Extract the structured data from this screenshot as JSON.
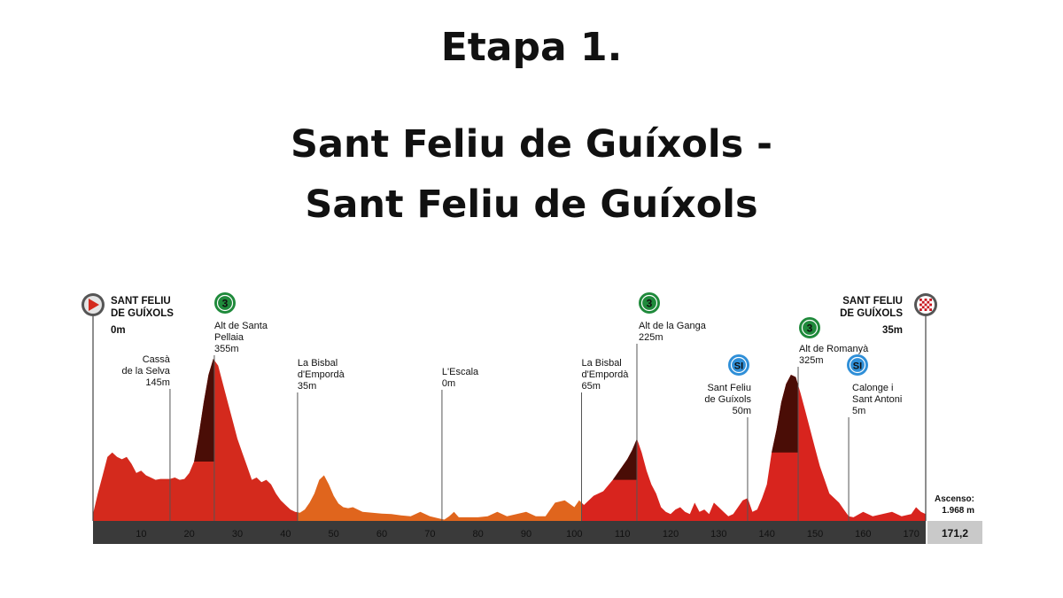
{
  "header": {
    "stage": "Etapa 1.",
    "route_line_1": "Sant Feliu de Guíxols -",
    "route_line_2": "Sant Feliu de Guíxols"
  },
  "chart_data": {
    "type": "area",
    "title": "",
    "xlabel": "",
    "ylabel": "",
    "xlim": [
      0,
      173
    ],
    "ylim": [
      0,
      400
    ],
    "x_ticks": [
      10,
      20,
      30,
      40,
      50,
      60,
      70,
      80,
      90,
      100,
      110,
      120,
      130,
      140,
      150,
      160,
      170
    ],
    "total_distance": "171,2",
    "ascent_label": "Ascenso:",
    "ascent_value": "1.968 m",
    "colors": {
      "early": "#d42a1d",
      "middle": "#e0651d",
      "late": "#d8241e",
      "climb": "#4a0d06",
      "axis": "#3a3a3a"
    },
    "profile": {
      "x": [
        0,
        1,
        2,
        3,
        4,
        5,
        6,
        7,
        8,
        9,
        10,
        11,
        12,
        13,
        14,
        15,
        16,
        17,
        18,
        19,
        20,
        21,
        22,
        23,
        24,
        25,
        26,
        27,
        28,
        29,
        30,
        31,
        32,
        33,
        34,
        35,
        36,
        37,
        38,
        39,
        40,
        41,
        42,
        43,
        44,
        45,
        46,
        47,
        48,
        49,
        50,
        51,
        52,
        53,
        54,
        55,
        56,
        58,
        60,
        62,
        64,
        66,
        68,
        70,
        72,
        73,
        74,
        75,
        76,
        78,
        80,
        82,
        84,
        86,
        88,
        90,
        92,
        94,
        96,
        98,
        100,
        101,
        102,
        104,
        106,
        108,
        110,
        111,
        112,
        113,
        114,
        115,
        116,
        117,
        118,
        119,
        120,
        121,
        122,
        123,
        124,
        125,
        126,
        127,
        128,
        129,
        130,
        131,
        132,
        133,
        134,
        135,
        136,
        137,
        138,
        139,
        140,
        141,
        142,
        143,
        144,
        145,
        146,
        147,
        148,
        149,
        150,
        151,
        152,
        153,
        154,
        155,
        156,
        157,
        158,
        160,
        162,
        164,
        166,
        168,
        170,
        171,
        172,
        173
      ],
      "y": [
        15,
        60,
        100,
        140,
        150,
        140,
        135,
        140,
        125,
        105,
        110,
        100,
        95,
        90,
        92,
        92,
        92,
        95,
        90,
        92,
        105,
        130,
        190,
        260,
        320,
        355,
        340,
        300,
        260,
        220,
        180,
        150,
        120,
        90,
        95,
        85,
        90,
        80,
        60,
        45,
        35,
        25,
        20,
        18,
        25,
        40,
        60,
        90,
        100,
        80,
        55,
        38,
        30,
        28,
        30,
        25,
        20,
        18,
        16,
        15,
        12,
        10,
        20,
        10,
        5,
        3,
        10,
        20,
        8,
        8,
        8,
        10,
        20,
        10,
        15,
        20,
        10,
        10,
        40,
        45,
        30,
        45,
        35,
        55,
        65,
        90,
        120,
        135,
        155,
        180,
        150,
        110,
        80,
        60,
        30,
        20,
        15,
        25,
        30,
        20,
        15,
        40,
        20,
        25,
        15,
        40,
        30,
        20,
        10,
        15,
        30,
        45,
        50,
        20,
        25,
        50,
        80,
        150,
        200,
        260,
        300,
        320,
        315,
        280,
        240,
        200,
        160,
        120,
        90,
        60,
        50,
        40,
        25,
        10,
        8,
        20,
        10,
        15,
        20,
        10,
        15,
        30,
        20,
        15
      ]
    },
    "segment_breaks": [
      42.5,
      101.5
    ],
    "climbs": [
      {
        "category": "3",
        "name_lines": [
          "Alt de Santa",
          "Pellaia"
        ],
        "altitude": "355m",
        "km": 25.2,
        "start_km": 21
      },
      {
        "category": "3",
        "name_lines": [
          "Alt de la Ganga"
        ],
        "altitude": "225m",
        "km": 113,
        "start_km": 108
      },
      {
        "category": "3",
        "name_lines": [
          "Alt de Romanyà"
        ],
        "altitude": "325m",
        "km": 146.5,
        "start_km": 141
      }
    ],
    "sprints": [
      {
        "badge": "SI",
        "name_lines": [
          "Sant Feliu",
          "de Guíxols"
        ],
        "altitude": "50m",
        "km": 136
      },
      {
        "badge": "SI",
        "name_lines": [
          "Calonge i",
          "Sant Antoni"
        ],
        "altitude": "5m",
        "km": 157
      }
    ],
    "places": [
      {
        "name_lines": [
          "Cassà",
          "de la Selva"
        ],
        "altitude": "145m",
        "km": 16
      },
      {
        "name_lines": [
          "La Bisbal",
          "d'Empordà"
        ],
        "altitude": "35m",
        "km": 42.5
      },
      {
        "name_lines": [
          "L'Escala"
        ],
        "altitude": "0m",
        "km": 72.5
      },
      {
        "name_lines": [
          "La Bisbal",
          "d'Empordà"
        ],
        "altitude": "65m",
        "km": 101.5
      }
    ],
    "start": {
      "name_lines": [
        "SANT FELIU",
        "DE GUÍXOLS"
      ],
      "altitude": "0m"
    },
    "finish": {
      "name_lines": [
        "SANT FELIU",
        "DE GUÍXOLS"
      ],
      "altitude": "35m"
    }
  }
}
